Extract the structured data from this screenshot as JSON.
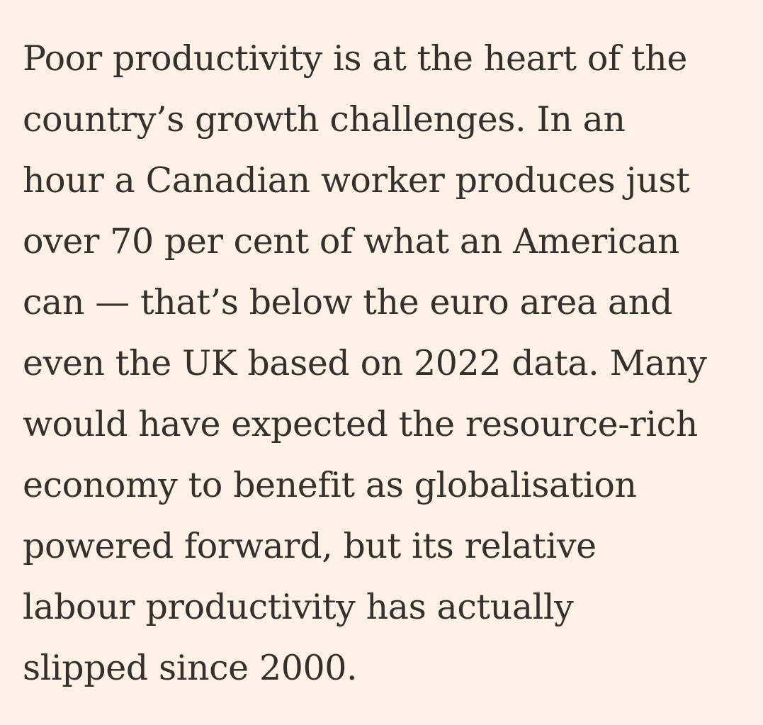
{
  "article": {
    "paragraph_lines": [
      "Poor productivity is at the heart of the",
      "country’s growth challenges. In an",
      "hour a Canadian worker produces just",
      "over 70 per cent of what an American",
      "can — that’s below the euro area and",
      "even the UK based on 2022 data. Many",
      "would have expected the resource-rich",
      "economy to benefit as globalisation",
      "powered forward, but its relative",
      "labour productivity has actually",
      "slipped since 2000."
    ]
  },
  "colors": {
    "background": "#fff1e5",
    "text": "#33302e"
  }
}
